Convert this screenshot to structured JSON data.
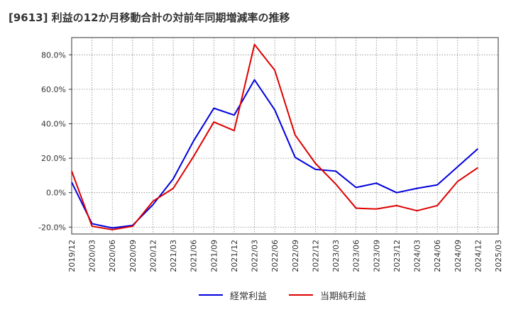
{
  "chart_data": {
    "type": "line",
    "title": "[9613]  利益の12か月移動合計の対前年同期増減率の推移",
    "xlabel": "",
    "ylabel": "",
    "ylim": [
      -24,
      90
    ],
    "y_ticks": [
      80,
      60,
      40,
      20,
      0,
      -20
    ],
    "y_tick_labels": [
      "80.0%",
      "60.0%",
      "40.0%",
      "20.0%",
      "0.0%",
      "-20.0%"
    ],
    "categories": [
      "2019/12",
      "2020/03",
      "2020/06",
      "2020/09",
      "2020/12",
      "2021/03",
      "2021/06",
      "2021/09",
      "2021/12",
      "2022/03",
      "2022/06",
      "2022/09",
      "2022/12",
      "2023/03",
      "2023/06",
      "2023/09",
      "2023/12",
      "2024/03",
      "2024/06",
      "2024/09",
      "2024/12",
      "2025/03"
    ],
    "grid": true,
    "legend_position": "bottom",
    "series": [
      {
        "name": "経常利益",
        "color": "#0000dd",
        "values": [
          6,
          -18,
          -20.5,
          -19,
          -7,
          8,
          30,
          49,
          45,
          65.5,
          48,
          20.5,
          13.5,
          12.5,
          3,
          5.5,
          0,
          2.5,
          4.5,
          15,
          25.5,
          null
        ]
      },
      {
        "name": "当期純利益",
        "color": "#dd0000",
        "values": [
          12.5,
          -19.5,
          -21.5,
          -19.5,
          -5,
          2.5,
          21,
          41,
          36,
          86,
          71,
          33.5,
          17,
          5,
          -9,
          -9.5,
          -7.5,
          -10.5,
          -7.5,
          6.5,
          14.5,
          null
        ]
      }
    ]
  }
}
